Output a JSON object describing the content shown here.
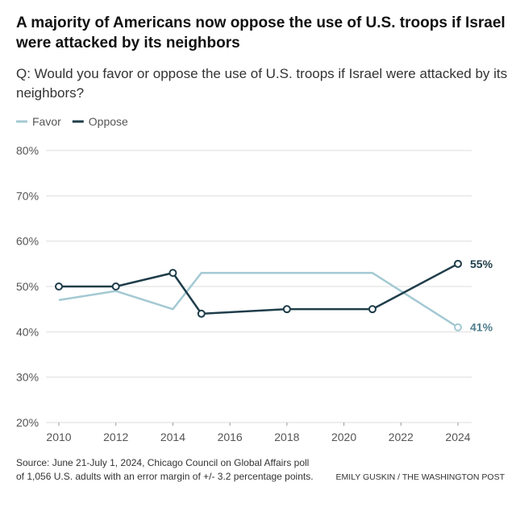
{
  "title": "A majority of Americans now oppose the use of U.S. troops if Israel were attacked by its neighbors",
  "subtitle": "Q: Would you favor or oppose the use of U.S. troops if Israel were attacked by its neighbors?",
  "source": "Source: June 21-July 1, 2024, Chicago Council on Global Affairs poll of 1,056 U.S. adults with an error margin of +/- 3.2 percentage points.",
  "credit": "EMILY GUSKIN / THE WASHINGTON POST",
  "chart_data": {
    "type": "line",
    "x": [
      2010,
      2012,
      2014,
      2015,
      2018,
      2021,
      2024
    ],
    "series": [
      {
        "name": "Favor",
        "color": "#a3c9d3",
        "values": [
          47,
          49,
          45,
          53,
          53,
          53,
          41
        ],
        "value_labels": [
          null,
          null,
          null,
          null,
          null,
          null,
          "41%"
        ]
      },
      {
        "name": "Oppose",
        "color": "#1f3d4a",
        "values": [
          50,
          50,
          53,
          44,
          45,
          45,
          55
        ],
        "value_labels": [
          null,
          null,
          null,
          null,
          null,
          null,
          "55%"
        ]
      }
    ],
    "xlim": [
      2010,
      2024
    ],
    "xticks": [
      2010,
      2012,
      2014,
      2016,
      2018,
      2020,
      2022,
      2024
    ],
    "ylim": [
      20,
      80
    ],
    "yticks": [
      {
        "value": 20,
        "label": "20%"
      },
      {
        "value": 30,
        "label": "30%"
      },
      {
        "value": 40,
        "label": "40%"
      },
      {
        "value": 50,
        "label": "50%"
      },
      {
        "value": 60,
        "label": "60%"
      },
      {
        "value": 70,
        "label": "70%"
      },
      {
        "value": 80,
        "label": "80%"
      }
    ],
    "grid": true,
    "legend": "top-left"
  }
}
